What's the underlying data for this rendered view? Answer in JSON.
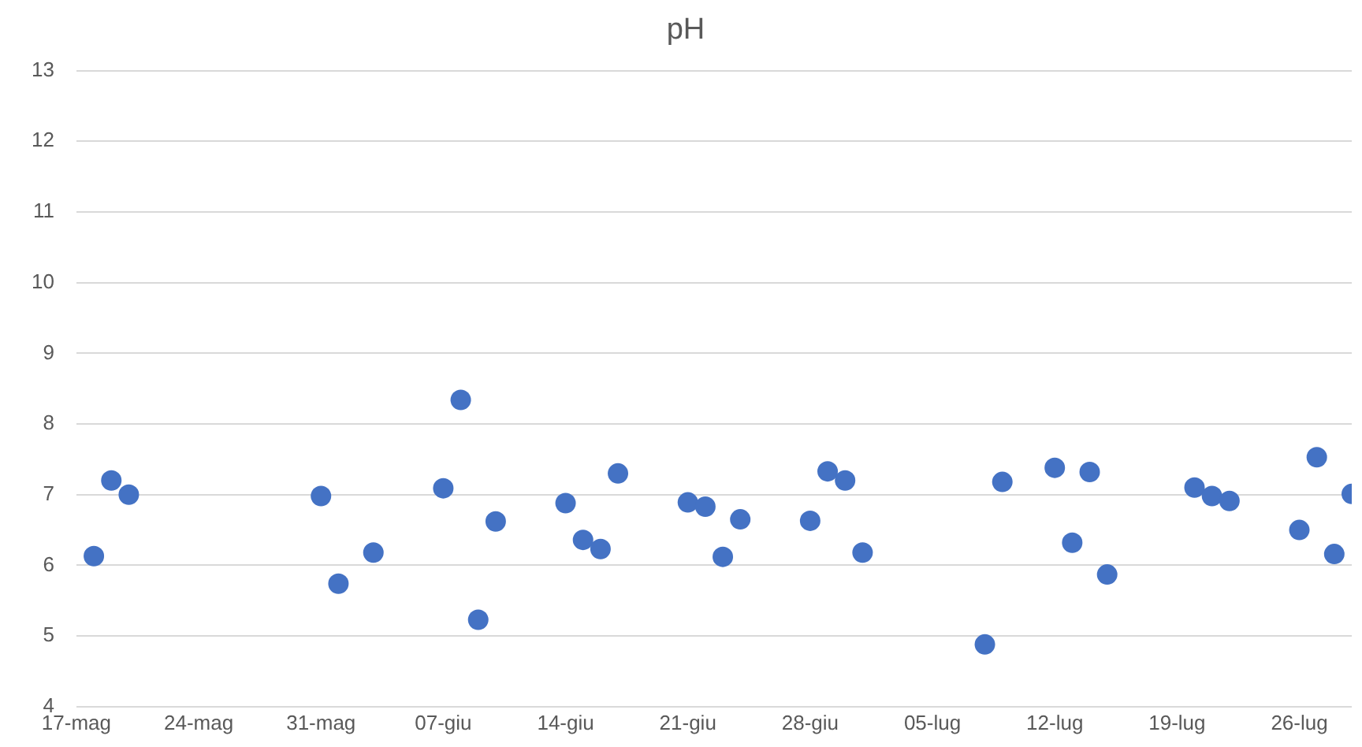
{
  "chart_data": {
    "type": "scatter",
    "title": "pH",
    "x": [
      "--05-18",
      "--05-19",
      "--05-20",
      "--05-31",
      "--06-01",
      "--06-03",
      "--06-07",
      "--06-08",
      "--06-09",
      "--06-10",
      "--06-14",
      "--06-15",
      "--06-16",
      "--06-17",
      "--06-21",
      "--06-22",
      "--06-23",
      "--06-24",
      "--06-28",
      "--06-29",
      "--06-30",
      "--07-01",
      "--07-08",
      "--07-09",
      "--07-12",
      "--07-13",
      "--07-14",
      "--07-15",
      "--07-20",
      "--07-21",
      "--07-22",
      "--07-26",
      "--07-27",
      "--07-28",
      "--07-29"
    ],
    "series": [
      {
        "color": "#4472c4",
        "values": [
          6.13,
          7.2,
          7.0,
          6.98,
          5.74,
          6.18,
          7.09,
          8.34,
          5.23,
          6.62,
          6.88,
          6.36,
          6.23,
          7.3,
          6.89,
          6.83,
          6.12,
          6.65,
          6.63,
          7.33,
          7.2,
          6.18,
          4.88,
          7.18,
          7.38,
          6.32,
          7.32,
          5.87,
          7.1,
          6.98,
          6.91,
          6.5,
          7.53,
          6.16,
          7.01
        ]
      }
    ],
    "xlim": [
      "--05-17",
      "--07-29"
    ],
    "xticks": [
      {
        "value": "--05-17",
        "label": "17-mag"
      },
      {
        "value": "--05-24",
        "label": "24-mag"
      },
      {
        "value": "--05-31",
        "label": "31-mag"
      },
      {
        "value": "--06-07",
        "label": "07-giu"
      },
      {
        "value": "--06-14",
        "label": "14-giu"
      },
      {
        "value": "--06-21",
        "label": "21-giu"
      },
      {
        "value": "--06-28",
        "label": "28-giu"
      },
      {
        "value": "--07-05",
        "label": "05-lug"
      },
      {
        "value": "--07-12",
        "label": "12-lug"
      },
      {
        "value": "--07-19",
        "label": "19-lug"
      },
      {
        "value": "--07-26",
        "label": "26-lug"
      }
    ],
    "ylim": [
      4,
      13
    ],
    "yticks": [
      4,
      5,
      6,
      7,
      8,
      9,
      10,
      11,
      12,
      13
    ],
    "grid": "y",
    "marker": "circle",
    "legend": false
  }
}
